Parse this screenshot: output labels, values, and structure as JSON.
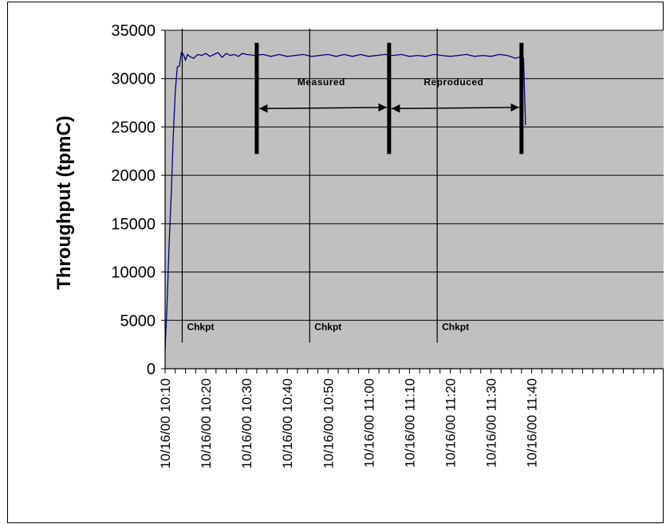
{
  "chart_data": {
    "type": "line",
    "title": "",
    "xlabel": "",
    "ylabel": "Throughput (tpmC)",
    "ylim": [
      0,
      35000
    ],
    "yticks": [
      "0",
      "5000",
      "10000",
      "15000",
      "20000",
      "25000",
      "30000",
      "35000"
    ],
    "xticks": [
      "10/16/00 10:10",
      "10/16/00 10:20",
      "10/16/00 10:30",
      "10/16/00 10:40",
      "10/16/00 10:50",
      "10/16/00 11:00",
      "10/16/00 11:10",
      "10/16/00 11:20",
      "10/16/00 11:30",
      "10/16/00 11:40"
    ],
    "x_range_minutes": [
      0,
      122
    ],
    "grid": "horizontal",
    "plot_background": "#c0c0c0",
    "line_color": "#000080",
    "series": [
      {
        "x": [
          0,
          0.5,
          1,
          1.5,
          2,
          2.5,
          3,
          3.5,
          4,
          4.5,
          5,
          5.5,
          6,
          7,
          8,
          9,
          10,
          11,
          12,
          13,
          14,
          15,
          16,
          17,
          18,
          19,
          20,
          22,
          24,
          26,
          28,
          30,
          32,
          34,
          36,
          38,
          40,
          42,
          44,
          46,
          48,
          50,
          52,
          54,
          56,
          58,
          60,
          62,
          64,
          66,
          68,
          70,
          72,
          74,
          76,
          78,
          80,
          82,
          84,
          86,
          87.5,
          88,
          88.5
        ],
        "y": [
          2000,
          7000,
          13000,
          18000,
          24000,
          28700,
          31200,
          31300,
          32700,
          32500,
          31900,
          32500,
          32300,
          32100,
          32500,
          32400,
          32600,
          32300,
          32500,
          32700,
          32200,
          32600,
          32400,
          32500,
          32300,
          32600,
          32500,
          32400,
          32500,
          32300,
          32500,
          32300,
          32400,
          32500,
          32300,
          32400,
          32500,
          32300,
          32500,
          32300,
          32500,
          32300,
          32400,
          32500,
          32400,
          32500,
          32300,
          32400,
          32300,
          32500,
          32400,
          32300,
          32400,
          32500,
          32300,
          32400,
          32300,
          32500,
          32400,
          32100,
          32300,
          32100,
          25200
        ]
      }
    ],
    "checkpoints": [
      {
        "x": 4.2,
        "label": "Chkpt"
      },
      {
        "x": 35.5,
        "label": "Chkpt"
      },
      {
        "x": 66.8,
        "label": "Chkpt"
      }
    ],
    "intervals": [
      {
        "label": "Measured",
        "start": 22.5,
        "end": 55.0
      },
      {
        "label": "Reproduced",
        "start": 55.0,
        "end": 87.5
      }
    ]
  }
}
